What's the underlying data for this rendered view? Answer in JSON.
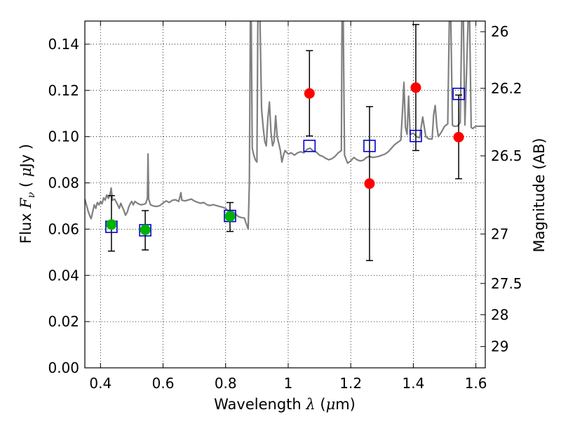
{
  "chart_data": {
    "type": "scatter",
    "title": "",
    "xlabel": "Wavelength  λ (μm)",
    "xlabel_parts": {
      "prefix": "Wavelength  ",
      "var": "λ",
      "mid": " (",
      "mu": "μ",
      "suffix": "m)"
    },
    "ylabel": "Flux  Fν  ( μJy )",
    "ylabel_parts": {
      "prefix": "Flux  ",
      "var": "F",
      "sub": "ν",
      "mid": "  ( ",
      "mu": "μ",
      "suffix": "Jy )"
    },
    "y2label": "Magnitude (AB)",
    "xlim": [
      0.35,
      1.63
    ],
    "ylim": [
      0.0,
      0.15
    ],
    "grid": true,
    "x_ticks": [
      0.4,
      0.6,
      0.8,
      1.0,
      1.2,
      1.4,
      1.6
    ],
    "x_tick_labels": [
      "0.4",
      "0.6",
      "0.8",
      "1",
      "1.2",
      "1.4",
      "1.6"
    ],
    "y_ticks": [
      0.0,
      0.02,
      0.04,
      0.06,
      0.08,
      0.1,
      0.12,
      0.14
    ],
    "y_tick_labels": [
      "0.00",
      "0.02",
      "0.04",
      "0.06",
      "0.08",
      "0.10",
      "0.12",
      "0.14"
    ],
    "y2_ticks": [
      {
        "label": "26",
        "flux": 0.1454
      },
      {
        "label": "26.2",
        "flux": 0.1209
      },
      {
        "label": "26.5",
        "flux": 0.0917
      },
      {
        "label": "27",
        "flux": 0.0579
      },
      {
        "label": "27.5",
        "flux": 0.0365
      },
      {
        "label": "28",
        "flux": 0.023
      },
      {
        "label": "29",
        "flux": 0.0092
      }
    ],
    "colors": {
      "spectrum": "#808080",
      "green_points": "#00b300",
      "red_points": "#ff0000",
      "model_squares": "#0000cc",
      "error_bars": "#000000"
    },
    "series": [
      {
        "kind": "green_points",
        "points": [
          {
            "x": 0.435,
            "y": 0.062,
            "yerr_low": 0.0505,
            "yerr_high": 0.0745
          },
          {
            "x": 0.543,
            "y": 0.0597,
            "yerr_low": 0.051,
            "yerr_high": 0.068
          },
          {
            "x": 0.814,
            "y": 0.0655,
            "yerr_low": 0.059,
            "yerr_high": 0.0715
          }
        ]
      },
      {
        "kind": "red_points",
        "points": [
          {
            "x": 1.068,
            "y": 0.1187,
            "yerr_low": 0.1003,
            "yerr_high": 0.1372
          },
          {
            "x": 1.26,
            "y": 0.0797,
            "yerr_low": 0.0464,
            "yerr_high": 0.113
          },
          {
            "x": 1.408,
            "y": 0.1212,
            "yerr_low": 0.094,
            "yerr_high": 0.1485
          },
          {
            "x": 1.545,
            "y": 0.0998,
            "yerr_low": 0.0818,
            "yerr_high": 0.118
          }
        ]
      },
      {
        "kind": "model_squares",
        "points": [
          {
            "x": 0.435,
            "y": 0.061
          },
          {
            "x": 0.543,
            "y": 0.0595
          },
          {
            "x": 0.814,
            "y": 0.0657
          },
          {
            "x": 1.068,
            "y": 0.096
          },
          {
            "x": 1.26,
            "y": 0.096
          },
          {
            "x": 1.408,
            "y": 0.1003
          },
          {
            "x": 1.545,
            "y": 0.1185
          }
        ]
      },
      {
        "kind": "spectrum",
        "points": [
          [
            0.35,
            0.073
          ],
          [
            0.356,
            0.07
          ],
          [
            0.36,
            0.068
          ],
          [
            0.365,
            0.066
          ],
          [
            0.37,
            0.0645
          ],
          [
            0.375,
            0.0675
          ],
          [
            0.38,
            0.0705
          ],
          [
            0.385,
            0.069
          ],
          [
            0.39,
            0.0715
          ],
          [
            0.395,
            0.0705
          ],
          [
            0.4,
            0.072
          ],
          [
            0.405,
            0.071
          ],
          [
            0.41,
            0.0735
          ],
          [
            0.415,
            0.0725
          ],
          [
            0.42,
            0.0748
          ],
          [
            0.425,
            0.0733
          ],
          [
            0.43,
            0.0745
          ],
          [
            0.434,
            0.0778
          ],
          [
            0.438,
            0.0725
          ],
          [
            0.445,
            0.073
          ],
          [
            0.45,
            0.0718
          ],
          [
            0.455,
            0.0705
          ],
          [
            0.46,
            0.069
          ],
          [
            0.465,
            0.0712
          ],
          [
            0.47,
            0.0695
          ],
          [
            0.475,
            0.068
          ],
          [
            0.48,
            0.066
          ],
          [
            0.486,
            0.0675
          ],
          [
            0.49,
            0.0695
          ],
          [
            0.495,
            0.071
          ],
          [
            0.5,
            0.072
          ],
          [
            0.505,
            0.0705
          ],
          [
            0.51,
            0.072
          ],
          [
            0.52,
            0.071
          ],
          [
            0.53,
            0.0705
          ],
          [
            0.54,
            0.0708
          ],
          [
            0.545,
            0.0712
          ],
          [
            0.548,
            0.0725
          ],
          [
            0.55,
            0.0735
          ],
          [
            0.552,
            0.0925
          ],
          [
            0.554,
            0.073
          ],
          [
            0.56,
            0.0705
          ],
          [
            0.57,
            0.07
          ],
          [
            0.58,
            0.0698
          ],
          [
            0.59,
            0.0702
          ],
          [
            0.6,
            0.0713
          ],
          [
            0.61,
            0.0722
          ],
          [
            0.62,
            0.0715
          ],
          [
            0.63,
            0.0725
          ],
          [
            0.64,
            0.0727
          ],
          [
            0.65,
            0.072
          ],
          [
            0.655,
            0.0745
          ],
          [
            0.657,
            0.0758
          ],
          [
            0.66,
            0.0725
          ],
          [
            0.67,
            0.0722
          ],
          [
            0.68,
            0.0726
          ],
          [
            0.69,
            0.073
          ],
          [
            0.7,
            0.0722
          ],
          [
            0.71,
            0.0716
          ],
          [
            0.72,
            0.0712
          ],
          [
            0.73,
            0.0715
          ],
          [
            0.74,
            0.0706
          ],
          [
            0.75,
            0.0702
          ],
          [
            0.76,
            0.0706
          ],
          [
            0.77,
            0.0702
          ],
          [
            0.78,
            0.0698
          ],
          [
            0.79,
            0.0695
          ],
          [
            0.8,
            0.069
          ],
          [
            0.81,
            0.0675
          ],
          [
            0.82,
            0.068
          ],
          [
            0.83,
            0.0668
          ],
          [
            0.84,
            0.0655
          ],
          [
            0.85,
            0.065
          ],
          [
            0.86,
            0.0648
          ],
          [
            0.865,
            0.0628
          ],
          [
            0.87,
            0.0608
          ],
          [
            0.872,
            0.06
          ],
          [
            0.876,
            0.08
          ],
          [
            0.879,
            0.15
          ],
          [
            0.882,
            0.15
          ],
          [
            0.885,
            0.095
          ],
          [
            0.89,
            0.092
          ],
          [
            0.895,
            0.09
          ],
          [
            0.9,
            0.089
          ],
          [
            0.903,
            0.15
          ],
          [
            0.91,
            0.15
          ],
          [
            0.915,
            0.112
          ],
          [
            0.92,
            0.104
          ],
          [
            0.925,
            0.098
          ],
          [
            0.93,
            0.096
          ],
          [
            0.935,
            0.108
          ],
          [
            0.94,
            0.115
          ],
          [
            0.945,
            0.102
          ],
          [
            0.95,
            0.096
          ],
          [
            0.955,
            0.098
          ],
          [
            0.96,
            0.109
          ],
          [
            0.965,
            0.1
          ],
          [
            0.97,
            0.097
          ],
          [
            0.975,
            0.094
          ],
          [
            0.98,
            0.089
          ],
          [
            0.985,
            0.092
          ],
          [
            0.99,
            0.094
          ],
          [
            1.0,
            0.0925
          ],
          [
            1.01,
            0.093
          ],
          [
            1.02,
            0.092
          ],
          [
            1.03,
            0.093
          ],
          [
            1.04,
            0.0935
          ],
          [
            1.05,
            0.093
          ],
          [
            1.06,
            0.0945
          ],
          [
            1.07,
            0.095
          ],
          [
            1.08,
            0.0938
          ],
          [
            1.09,
            0.0933
          ],
          [
            1.1,
            0.092
          ],
          [
            1.11,
            0.0915
          ],
          [
            1.12,
            0.0906
          ],
          [
            1.13,
            0.09
          ],
          [
            1.14,
            0.0905
          ],
          [
            1.15,
            0.0915
          ],
          [
            1.16,
            0.093
          ],
          [
            1.17,
            0.094
          ],
          [
            1.172,
            0.15
          ],
          [
            1.176,
            0.15
          ],
          [
            1.18,
            0.092
          ],
          [
            1.19,
            0.0885
          ],
          [
            1.2,
            0.0895
          ],
          [
            1.21,
            0.091
          ],
          [
            1.22,
            0.09
          ],
          [
            1.23,
            0.0895
          ],
          [
            1.24,
            0.0898
          ],
          [
            1.25,
            0.091
          ],
          [
            1.26,
            0.0915
          ],
          [
            1.27,
            0.091
          ],
          [
            1.28,
            0.0912
          ],
          [
            1.29,
            0.0915
          ],
          [
            1.3,
            0.092
          ],
          [
            1.31,
            0.0925
          ],
          [
            1.32,
            0.0935
          ],
          [
            1.33,
            0.095
          ],
          [
            1.34,
            0.0965
          ],
          [
            1.35,
            0.0975
          ],
          [
            1.36,
            0.0985
          ],
          [
            1.365,
            0.11
          ],
          [
            1.37,
            0.1235
          ],
          [
            1.375,
            0.104
          ],
          [
            1.38,
            0.101
          ],
          [
            1.385,
            0.1175
          ],
          [
            1.39,
            0.101
          ],
          [
            1.4,
            0.1015
          ],
          [
            1.41,
            0.1
          ],
          [
            1.42,
            0.0995
          ],
          [
            1.43,
            0.1085
          ],
          [
            1.44,
            0.1
          ],
          [
            1.45,
            0.099
          ],
          [
            1.46,
            0.099
          ],
          [
            1.465,
            0.1095
          ],
          [
            1.47,
            0.1135
          ],
          [
            1.475,
            0.1045
          ],
          [
            1.48,
            0.1
          ],
          [
            1.49,
            0.102
          ],
          [
            1.5,
            0.1045
          ],
          [
            1.51,
            0.1055
          ],
          [
            1.515,
            0.15
          ],
          [
            1.52,
            0.15
          ],
          [
            1.525,
            0.105
          ],
          [
            1.53,
            0.1045
          ],
          [
            1.54,
            0.1045
          ],
          [
            1.55,
            0.106
          ],
          [
            1.555,
            0.15
          ],
          [
            1.56,
            0.15
          ],
          [
            1.565,
            0.105
          ],
          [
            1.575,
            0.15
          ],
          [
            1.58,
            0.15
          ],
          [
            1.585,
            0.104
          ],
          [
            1.59,
            0.1035
          ],
          [
            1.6,
            0.1045
          ],
          [
            1.61,
            0.1045
          ],
          [
            1.62,
            0.1045
          ],
          [
            1.63,
            0.1045
          ]
        ]
      }
    ]
  }
}
